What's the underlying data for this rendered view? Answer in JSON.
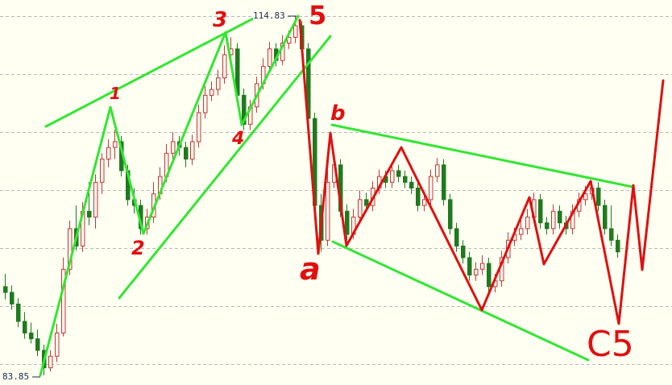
{
  "chart_data": {
    "type": "candlestick",
    "title": "",
    "price_high_label": "114.83",
    "price_low_label": "83.85",
    "ylim": [
      83.85,
      114.83
    ],
    "grid": "horizontal dashed",
    "colors": {
      "background": "#fffff2",
      "up": "#c03a3a",
      "up_fill": "#fff4ea",
      "down": "#1f7a1f",
      "grid": "#b8b8b8",
      "annotation_green": "#33e633",
      "annotation_red": "#e01010"
    },
    "ohlc": [
      [
        91.5,
        92.6,
        90.4,
        91.0
      ],
      [
        91.0,
        91.6,
        89.5,
        90.0
      ],
      [
        90.0,
        90.5,
        88.0,
        88.5
      ],
      [
        88.5,
        89.3,
        87.0,
        87.5
      ],
      [
        87.5,
        88.4,
        86.6,
        87.0
      ],
      [
        87.0,
        87.8,
        85.5,
        86.0
      ],
      [
        86.0,
        86.5,
        83.85,
        84.5
      ],
      [
        84.5,
        86.0,
        84.2,
        85.5
      ],
      [
        85.5,
        88.3,
        85.0,
        87.5
      ],
      [
        87.5,
        94.0,
        87.2,
        93.0
      ],
      [
        93.0,
        97.2,
        92.5,
        96.5
      ],
      [
        96.5,
        98.5,
        94.6,
        95.0
      ],
      [
        95.0,
        98.8,
        94.5,
        98.0
      ],
      [
        98.0,
        100.5,
        96.8,
        97.5
      ],
      [
        97.5,
        101.2,
        96.5,
        100.5
      ],
      [
        100.5,
        103.0,
        99.5,
        102.5
      ],
      [
        102.5,
        104.2,
        101.8,
        103.5
      ],
      [
        103.5,
        105.0,
        102.5,
        104.0
      ],
      [
        104.0,
        104.5,
        101.0,
        101.5
      ],
      [
        101.5,
        102.0,
        98.5,
        99.0
      ],
      [
        99.0,
        100.0,
        97.8,
        98.5
      ],
      [
        98.5,
        99.0,
        96.0,
        96.5
      ],
      [
        96.5,
        98.2,
        96.0,
        97.5
      ],
      [
        97.5,
        100.5,
        97.0,
        99.5
      ],
      [
        99.5,
        101.8,
        99.0,
        101.0
      ],
      [
        101.0,
        103.8,
        100.5,
        103.0
      ],
      [
        103.0,
        104.8,
        102.5,
        104.0
      ],
      [
        104.0,
        104.5,
        102.8,
        103.5
      ],
      [
        103.5,
        104.0,
        101.8,
        102.5
      ],
      [
        102.5,
        104.6,
        102.0,
        104.0
      ],
      [
        104.0,
        107.2,
        103.5,
        106.5
      ],
      [
        106.5,
        108.8,
        106.0,
        108.0
      ],
      [
        108.0,
        109.2,
        107.5,
        108.5
      ],
      [
        108.5,
        110.2,
        108.0,
        109.5
      ],
      [
        109.5,
        112.3,
        109.0,
        111.5
      ],
      [
        111.5,
        113.0,
        111.0,
        112.0
      ],
      [
        112.0,
        112.5,
        107.5,
        108.0
      ],
      [
        108.0,
        108.6,
        105.0,
        105.5
      ],
      [
        105.5,
        107.6,
        105.0,
        107.0
      ],
      [
        107.0,
        109.6,
        106.5,
        109.0
      ],
      [
        109.0,
        111.2,
        108.5,
        110.5
      ],
      [
        110.5,
        112.6,
        110.0,
        112.0
      ],
      [
        112.0,
        112.5,
        110.5,
        111.0
      ],
      [
        111.0,
        113.2,
        110.6,
        112.5
      ],
      [
        112.5,
        113.6,
        112.0,
        113.0
      ],
      [
        113.0,
        114.83,
        112.5,
        114.0
      ],
      [
        114.0,
        114.4,
        111.5,
        112.0
      ],
      [
        112.0,
        112.5,
        105.5,
        106.0
      ],
      [
        106.0,
        106.5,
        98.0,
        98.5
      ],
      [
        98.5,
        99.5,
        94.5,
        95.5
      ],
      [
        95.5,
        101.5,
        95.0,
        100.5
      ],
      [
        100.5,
        102.8,
        100.0,
        102.0
      ],
      [
        102.0,
        102.5,
        97.5,
        98.0
      ],
      [
        98.0,
        98.6,
        95.5,
        96.0
      ],
      [
        96.0,
        98.2,
        95.6,
        97.5
      ],
      [
        97.5,
        99.8,
        97.0,
        99.0
      ],
      [
        99.0,
        99.6,
        98.0,
        98.5
      ],
      [
        98.5,
        100.6,
        98.0,
        100.0
      ],
      [
        100.0,
        101.6,
        99.5,
        101.0
      ],
      [
        101.0,
        101.5,
        100.0,
        100.5
      ],
      [
        100.5,
        102.2,
        100.0,
        101.5
      ],
      [
        101.5,
        102.0,
        100.5,
        101.0
      ],
      [
        101.0,
        101.5,
        100.0,
        100.5
      ],
      [
        100.5,
        101.0,
        99.5,
        100.0
      ],
      [
        100.0,
        100.5,
        98.0,
        98.5
      ],
      [
        98.5,
        99.6,
        98.0,
        99.0
      ],
      [
        99.0,
        101.6,
        98.5,
        101.0
      ],
      [
        101.0,
        102.6,
        100.5,
        102.0
      ],
      [
        102.0,
        102.5,
        98.5,
        99.0
      ],
      [
        99.0,
        99.5,
        96.0,
        96.5
      ],
      [
        96.5,
        97.0,
        94.5,
        95.0
      ],
      [
        95.0,
        95.5,
        93.5,
        94.0
      ],
      [
        94.0,
        94.5,
        92.0,
        92.5
      ],
      [
        92.5,
        93.6,
        92.0,
        93.0
      ],
      [
        93.0,
        94.2,
        92.5,
        93.5
      ],
      [
        93.5,
        94.0,
        91.0,
        91.5
      ],
      [
        91.5,
        92.6,
        91.0,
        92.0
      ],
      [
        92.0,
        94.6,
        91.5,
        94.0
      ],
      [
        94.0,
        96.2,
        93.5,
        95.5
      ],
      [
        95.5,
        96.6,
        95.0,
        96.0
      ],
      [
        96.0,
        97.2,
        95.5,
        96.5
      ],
      [
        96.5,
        98.2,
        96.0,
        97.5
      ],
      [
        97.5,
        99.6,
        97.0,
        99.0
      ],
      [
        99.0,
        99.5,
        96.5,
        97.0
      ],
      [
        97.0,
        97.5,
        96.0,
        96.5
      ],
      [
        96.5,
        98.6,
        96.0,
        98.0
      ],
      [
        98.0,
        98.5,
        96.5,
        97.0
      ],
      [
        97.0,
        97.6,
        96.0,
        96.5
      ],
      [
        96.5,
        98.6,
        96.0,
        98.0
      ],
      [
        98.0,
        99.6,
        97.5,
        99.0
      ],
      [
        99.0,
        100.2,
        98.5,
        99.5
      ],
      [
        99.5,
        100.6,
        99.0,
        100.0
      ],
      [
        100.0,
        100.5,
        98.0,
        98.5
      ],
      [
        98.5,
        99.0,
        96.0,
        96.5
      ],
      [
        96.5,
        98.5,
        95.0,
        95.5
      ],
      [
        95.5,
        96.0,
        94.0,
        94.5
      ]
    ],
    "wave_labels": {
      "w1": "1",
      "w2": "2",
      "w3": "3",
      "w4": "4",
      "w5": "5",
      "wa": "a",
      "wb": "b",
      "wc": "C5"
    }
  }
}
